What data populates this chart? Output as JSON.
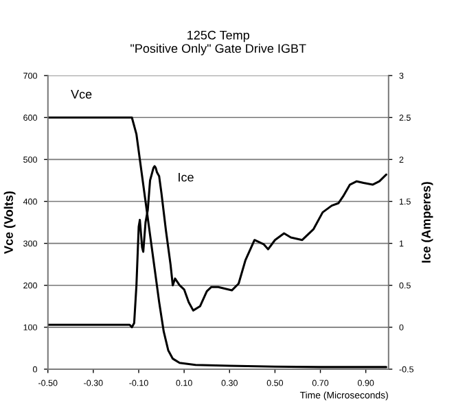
{
  "chart_data": {
    "type": "line",
    "title": "125C Temp\n\"Positive Only\" Gate Drive IGBT",
    "xlabel": "Time (Microseconds)",
    "ylabel": "Vce (Volts)",
    "y2label": "Ice (Amperes)",
    "xlim": [
      -0.5,
      1.0
    ],
    "xticks": [
      {
        "value": -0.5,
        "label": "-0.50"
      },
      {
        "value": -0.3,
        "label": "-0.30"
      },
      {
        "value": -0.1,
        "label": "-0.10"
      },
      {
        "value": 0.1,
        "label": "0.10"
      },
      {
        "value": 0.3,
        "label": "0.30"
      },
      {
        "value": 0.5,
        "label": "0.50"
      },
      {
        "value": 0.7,
        "label": "0.70"
      },
      {
        "value": 0.9,
        "label": "0.90"
      }
    ],
    "ylim": [
      0,
      700
    ],
    "yticks": [
      0,
      100,
      200,
      300,
      400,
      500,
      600,
      700
    ],
    "y2lim": [
      -0.5,
      3
    ],
    "y2ticks": [
      -0.5,
      0,
      0.5,
      1,
      1.5,
      2,
      2.5,
      3
    ],
    "grid": "y",
    "legend": false,
    "marker": "none",
    "line_style": "solid",
    "series": [
      {
        "name": "Vce",
        "color": "#000000",
        "x": [
          -0.5,
          -0.3,
          -0.13,
          -0.11,
          -0.09,
          -0.07,
          -0.05,
          -0.03,
          -0.01,
          0.01,
          0.03,
          0.05,
          0.08,
          0.15,
          0.3,
          0.5,
          0.7,
          0.9,
          0.99
        ],
        "values": [
          600,
          600,
          600,
          560,
          480,
          400,
          320,
          240,
          160,
          90,
          45,
          25,
          15,
          10,
          8,
          6,
          5,
          5,
          5
        ]
      },
      {
        "name": "Ice",
        "color": "#000000",
        "axis": "y2",
        "x": [
          -0.5,
          -0.14,
          -0.13,
          -0.12,
          -0.11,
          -0.1,
          -0.095,
          -0.085,
          -0.08,
          -0.07,
          -0.06,
          -0.05,
          -0.04,
          -0.035,
          -0.03,
          -0.025,
          -0.02,
          -0.01,
          0.0,
          0.02,
          0.04,
          0.05,
          0.06,
          0.08,
          0.1,
          0.12,
          0.14,
          0.17,
          0.2,
          0.22,
          0.25,
          0.31,
          0.34,
          0.37,
          0.41,
          0.45,
          0.47,
          0.5,
          0.54,
          0.57,
          0.62,
          0.67,
          0.71,
          0.75,
          0.78,
          0.8,
          0.83,
          0.86,
          0.89,
          0.93,
          0.96,
          0.99
        ],
        "values": [
          0.03,
          0.03,
          0.0,
          0.05,
          0.5,
          1.2,
          1.28,
          0.95,
          0.9,
          1.25,
          1.4,
          1.75,
          1.85,
          1.9,
          1.92,
          1.9,
          1.85,
          1.8,
          1.6,
          1.15,
          0.75,
          0.5,
          0.58,
          0.5,
          0.45,
          0.3,
          0.2,
          0.25,
          0.43,
          0.48,
          0.48,
          0.44,
          0.52,
          0.8,
          1.04,
          0.99,
          0.93,
          1.04,
          1.12,
          1.07,
          1.04,
          1.17,
          1.37,
          1.45,
          1.48,
          1.56,
          1.7,
          1.74,
          1.72,
          1.7,
          1.74,
          1.82
        ]
      }
    ]
  }
}
